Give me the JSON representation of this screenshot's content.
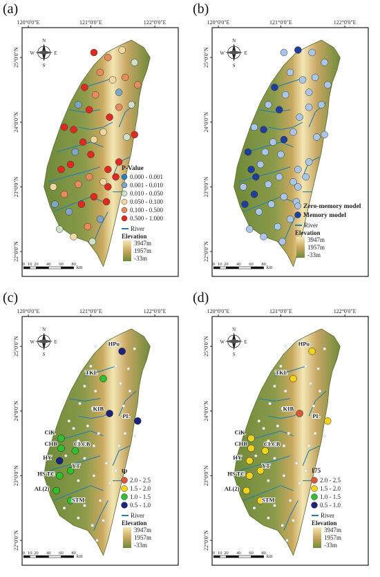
{
  "colors": {
    "frame": "#1a1a1a",
    "land_low": "#6e8a3a",
    "land_mid": "#c9a85e",
    "land_high": "#f4e6b4",
    "river": "#1f7fb0",
    "station_light": "#f2f2f2"
  },
  "coordinates": {
    "lon_labels": [
      "120°0'0\"E",
      "121°0'0\"E",
      "122°0'0\"E"
    ],
    "lat_labels": [
      "25°0'0\"N",
      "24°0'0\"N",
      "23°0'0\"N",
      "22°0'0\"N"
    ]
  },
  "compass": {
    "n": "N",
    "s": "S",
    "w": "W",
    "e": "E"
  },
  "scale_bar": {
    "ticks": [
      "0",
      "10",
      "20",
      "40",
      "60",
      "80"
    ],
    "unit": "km"
  },
  "elevation": {
    "title": "Elevation",
    "max": "3947m",
    "mid": "1957m",
    "min": "-33m"
  },
  "river_label": "River",
  "panels": {
    "a": {
      "label": "(a)",
      "legend_title": "P-Value",
      "classes": [
        {
          "label": "0.000 - 0.001",
          "color": "#2a7fc0"
        },
        {
          "label": "0.001 - 0.010",
          "color": "#7fa6c8"
        },
        {
          "label": "0.010 - 0.050",
          "color": "#cfe0c8"
        },
        {
          "label": "0.050 - 0.100",
          "color": "#f3d7a0"
        },
        {
          "label": "0.100 - 0.500",
          "color": "#e88a5c"
        },
        {
          "label": "0.500 - 1.000",
          "color": "#e02a20"
        }
      ]
    },
    "b": {
      "label": "(b)",
      "classes": [
        {
          "label": "Zero-memory model",
          "color": "#a9c6e8"
        },
        {
          "label": "Memory model",
          "color": "#1f3f9c"
        }
      ]
    },
    "c": {
      "label": "(c)",
      "legend_title": "tp",
      "classes": [
        {
          "label": "2.0 - 2.5",
          "color": "#d9583a"
        },
        {
          "label": "1.5 - 2.0",
          "color": "#f5d21a"
        },
        {
          "label": "1.0 - 1.5",
          "color": "#2fbf2f"
        },
        {
          "label": "0.5 - 1.0",
          "color": "#1a237e"
        }
      ]
    },
    "d": {
      "label": "(d)",
      "legend_title": "I75",
      "classes": [
        {
          "label": "2.0 - 2.5",
          "color": "#d9583a"
        },
        {
          "label": "1.5 - 2.0",
          "color": "#f5d21a"
        },
        {
          "label": "1.0 - 1.5",
          "color": "#2fbf2f"
        },
        {
          "label": "0.5 - 1.0",
          "color": "#1a237e"
        }
      ]
    }
  },
  "stations": [
    {
      "name": "HPu",
      "c": 3,
      "d": 1
    },
    {
      "name": "TKL",
      "c": 2,
      "d": 1
    },
    {
      "name": "KIB",
      "c": 3,
      "d": 0
    },
    {
      "name": "PL",
      "c": 3,
      "d": 1
    },
    {
      "name": "CiK",
      "c": 2,
      "d": 1
    },
    {
      "name": "CHB",
      "c": 2,
      "d": 1
    },
    {
      "name": "CLCB",
      "c": 2,
      "d": 1
    },
    {
      "name": "HY",
      "c": 3,
      "d": 1
    },
    {
      "name": "YT",
      "c": 2,
      "d": 1
    },
    {
      "name": "HS TC",
      "c": 2,
      "d": 1
    },
    {
      "name": "AL(2)",
      "c": 2,
      "d": 1
    },
    {
      "name": "STM",
      "c": 2,
      "d": 1
    }
  ],
  "points_a": [
    [
      0.46,
      0.1,
      5
    ],
    [
      0.55,
      0.12,
      4
    ],
    [
      0.64,
      0.09,
      3
    ],
    [
      0.72,
      0.14,
      2
    ],
    [
      0.5,
      0.18,
      4
    ],
    [
      0.58,
      0.21,
      3
    ],
    [
      0.66,
      0.2,
      4
    ],
    [
      0.4,
      0.24,
      5
    ],
    [
      0.47,
      0.27,
      4
    ],
    [
      0.62,
      0.26,
      1
    ],
    [
      0.74,
      0.23,
      4
    ],
    [
      0.36,
      0.31,
      1
    ],
    [
      0.43,
      0.33,
      5
    ],
    [
      0.56,
      0.36,
      5
    ],
    [
      0.62,
      0.32,
      4
    ],
    [
      0.7,
      0.31,
      2
    ],
    [
      0.27,
      0.4,
      5
    ],
    [
      0.33,
      0.41,
      5
    ],
    [
      0.39,
      0.46,
      5
    ],
    [
      0.46,
      0.45,
      3
    ],
    [
      0.52,
      0.42,
      3
    ],
    [
      0.67,
      0.44,
      2
    ],
    [
      0.72,
      0.43,
      5
    ],
    [
      0.34,
      0.5,
      1
    ],
    [
      0.44,
      0.51,
      5
    ],
    [
      0.25,
      0.57,
      5
    ],
    [
      0.31,
      0.55,
      5
    ],
    [
      0.2,
      0.64,
      3
    ],
    [
      0.27,
      0.67,
      4
    ],
    [
      0.36,
      0.63,
      4
    ],
    [
      0.43,
      0.6,
      4
    ],
    [
      0.55,
      0.57,
      5
    ],
    [
      0.62,
      0.54,
      5
    ],
    [
      0.6,
      0.6,
      5
    ],
    [
      0.55,
      0.64,
      5
    ],
    [
      0.21,
      0.71,
      1
    ],
    [
      0.3,
      0.74,
      1
    ],
    [
      0.38,
      0.71,
      5
    ],
    [
      0.46,
      0.68,
      5
    ],
    [
      0.54,
      0.7,
      5
    ],
    [
      0.24,
      0.81,
      2
    ],
    [
      0.33,
      0.84,
      3
    ],
    [
      0.42,
      0.8,
      4
    ],
    [
      0.5,
      0.77,
      1
    ],
    [
      0.45,
      0.86,
      2
    ],
    [
      0.52,
      0.62,
      3
    ]
  ],
  "points_b": [
    [
      0.46,
      0.1,
      0
    ],
    [
      0.55,
      0.09,
      1
    ],
    [
      0.64,
      0.1,
      0
    ],
    [
      0.72,
      0.14,
      0
    ],
    [
      0.5,
      0.18,
      0
    ],
    [
      0.58,
      0.21,
      0
    ],
    [
      0.66,
      0.2,
      0
    ],
    [
      0.4,
      0.24,
      1
    ],
    [
      0.47,
      0.27,
      0
    ],
    [
      0.62,
      0.26,
      0
    ],
    [
      0.74,
      0.23,
      0
    ],
    [
      0.36,
      0.31,
      0
    ],
    [
      0.43,
      0.33,
      1
    ],
    [
      0.56,
      0.36,
      0
    ],
    [
      0.62,
      0.32,
      0
    ],
    [
      0.7,
      0.31,
      0
    ],
    [
      0.27,
      0.4,
      0
    ],
    [
      0.33,
      0.41,
      1
    ],
    [
      0.39,
      0.46,
      0
    ],
    [
      0.46,
      0.45,
      1
    ],
    [
      0.52,
      0.42,
      0
    ],
    [
      0.67,
      0.44,
      0
    ],
    [
      0.72,
      0.43,
      0
    ],
    [
      0.34,
      0.5,
      0
    ],
    [
      0.44,
      0.51,
      0
    ],
    [
      0.25,
      0.57,
      1
    ],
    [
      0.31,
      0.55,
      0
    ],
    [
      0.2,
      0.64,
      0
    ],
    [
      0.27,
      0.67,
      1
    ],
    [
      0.36,
      0.63,
      0
    ],
    [
      0.43,
      0.6,
      0
    ],
    [
      0.55,
      0.57,
      0
    ],
    [
      0.62,
      0.54,
      0
    ],
    [
      0.6,
      0.6,
      0
    ],
    [
      0.55,
      0.64,
      0
    ],
    [
      0.21,
      0.71,
      1
    ],
    [
      0.3,
      0.74,
      0
    ],
    [
      0.38,
      0.71,
      0
    ],
    [
      0.46,
      0.68,
      0
    ],
    [
      0.54,
      0.7,
      0
    ],
    [
      0.24,
      0.81,
      0
    ],
    [
      0.33,
      0.84,
      0
    ],
    [
      0.42,
      0.8,
      0
    ],
    [
      0.5,
      0.77,
      0
    ],
    [
      0.45,
      0.86,
      0
    ],
    [
      0.52,
      0.62,
      0
    ],
    [
      0.28,
      0.6,
      1
    ],
    [
      0.23,
      0.5,
      1
    ]
  ]
}
